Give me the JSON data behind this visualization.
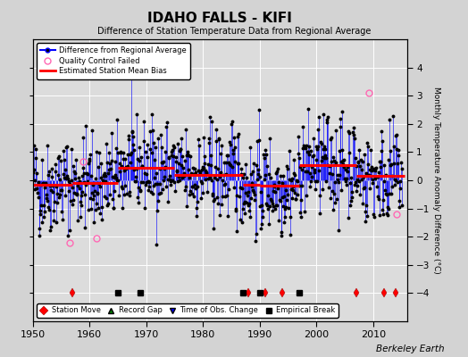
{
  "title": "IDAHO FALLS - KIFI",
  "subtitle": "Difference of Station Temperature Data from Regional Average",
  "ylabel": "Monthly Temperature Anomaly Difference (°C)",
  "xlim": [
    1950,
    2016
  ],
  "ylim": [
    -5,
    5
  ],
  "yticks": [
    -4,
    -3,
    -2,
    -1,
    0,
    1,
    2,
    3,
    4
  ],
  "xticks": [
    1950,
    1960,
    1970,
    1980,
    1990,
    2000,
    2010
  ],
  "background_color": "#d3d3d3",
  "plot_bg_color": "#dcdcdc",
  "line_color": "#0000ff",
  "dot_color": "#000000",
  "bias_color": "#ff0000",
  "qc_color": "#ff69b4",
  "watermark": "Berkeley Earth",
  "station_moves": [
    1957,
    1988,
    1991,
    1994,
    2007,
    2012,
    2014
  ],
  "empirical_breaks": [
    1965,
    1969,
    1987,
    1990,
    1997
  ],
  "time_obs_changes": [],
  "record_gaps": [],
  "bias_segments": [
    {
      "start": 1950,
      "end": 1957,
      "value": -0.15
    },
    {
      "start": 1957,
      "end": 1965,
      "value": -0.1
    },
    {
      "start": 1965,
      "end": 1975,
      "value": 0.45
    },
    {
      "start": 1975,
      "end": 1987,
      "value": 0.2
    },
    {
      "start": 1987,
      "end": 1990,
      "value": -0.15
    },
    {
      "start": 1990,
      "end": 1997,
      "value": -0.2
    },
    {
      "start": 1997,
      "end": 2007,
      "value": 0.55
    },
    {
      "start": 2007,
      "end": 2014,
      "value": 0.15
    },
    {
      "start": 2014,
      "end": 2015.5,
      "value": 0.15
    }
  ],
  "qc_years": [
    1956.5,
    1958.8,
    1961.3,
    2009.3,
    2014.2
  ],
  "qc_vals": [
    -2.2,
    0.65,
    -2.05,
    3.1,
    -1.2
  ],
  "seed": 42
}
